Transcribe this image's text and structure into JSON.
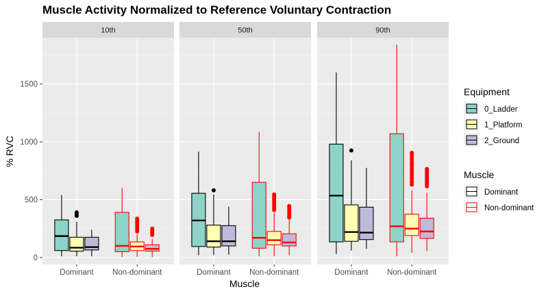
{
  "chart_data": {
    "type": "boxplot",
    "title": "Muscle Activity Normalized to Reference Voluntary Contraction",
    "xlabel": "Muscle",
    "ylabel": "% RVC",
    "ylim": [
      -60,
      1900
    ],
    "yticks": [
      0,
      500,
      1000,
      1500
    ],
    "categories": [
      "Dominant",
      "Non-dominant"
    ],
    "panels": [
      "10th",
      "50th",
      "90th"
    ],
    "legend": {
      "position": "right",
      "equipment_title": "Equipment",
      "equipment": [
        {
          "name": "0_Ladder",
          "fill": "#8dd3c7"
        },
        {
          "name": "1_Platform",
          "fill": "#ffffb3"
        },
        {
          "name": "2_Ground",
          "fill": "#bebada"
        }
      ],
      "muscle_title": "Muscle",
      "muscle": [
        {
          "name": "Dominant",
          "color": "#000000"
        },
        {
          "name": "Non-dominant",
          "color": "#ff0000"
        }
      ]
    },
    "boxes": [
      {
        "panel": "10th",
        "muscle": "Dominant",
        "equipment": "0_Ladder",
        "min": 10,
        "q1": 60,
        "median": 185,
        "q3": 325,
        "max": 540,
        "outliers": []
      },
      {
        "panel": "10th",
        "muscle": "Dominant",
        "equipment": "1_Platform",
        "min": 10,
        "q1": 55,
        "median": 85,
        "q3": 175,
        "max": 310,
        "outliers": [
          360,
          375,
          390
        ]
      },
      {
        "panel": "10th",
        "muscle": "Dominant",
        "equipment": "2_Ground",
        "min": 10,
        "q1": 65,
        "median": 90,
        "q3": 175,
        "max": 240,
        "outliers": []
      },
      {
        "panel": "10th",
        "muscle": "Non-dominant",
        "equipment": "0_Ladder",
        "min": 5,
        "q1": 50,
        "median": 100,
        "q3": 390,
        "max": 600,
        "outliers": []
      },
      {
        "panel": "10th",
        "muscle": "Non-dominant",
        "equipment": "1_Platform",
        "min": 5,
        "q1": 60,
        "median": 95,
        "q3": 135,
        "max": 200,
        "outliers": [
          225,
          245,
          260,
          275,
          290,
          305,
          320,
          335
        ]
      },
      {
        "panel": "10th",
        "muscle": "Non-dominant",
        "equipment": "2_Ground",
        "min": 5,
        "q1": 55,
        "median": 75,
        "q3": 110,
        "max": 160,
        "outliers": [
          195,
          210,
          225,
          240,
          250
        ]
      },
      {
        "panel": "50th",
        "muscle": "Dominant",
        "equipment": "0_Ladder",
        "min": 20,
        "q1": 95,
        "median": 320,
        "q3": 555,
        "max": 915,
        "outliers": []
      },
      {
        "panel": "50th",
        "muscle": "Dominant",
        "equipment": "1_Platform",
        "min": 20,
        "q1": 90,
        "median": 140,
        "q3": 280,
        "max": 545,
        "outliers": [
          580
        ]
      },
      {
        "panel": "50th",
        "muscle": "Dominant",
        "equipment": "2_Ground",
        "min": 25,
        "q1": 100,
        "median": 140,
        "q3": 275,
        "max": 440,
        "outliers": []
      },
      {
        "panel": "50th",
        "muscle": "Non-dominant",
        "equipment": "0_Ladder",
        "min": 10,
        "q1": 80,
        "median": 170,
        "q3": 650,
        "max": 1085,
        "outliers": []
      },
      {
        "panel": "50th",
        "muscle": "Non-dominant",
        "equipment": "1_Platform",
        "min": 10,
        "q1": 110,
        "median": 150,
        "q3": 225,
        "max": 385,
        "outliers": [
          410,
          425,
          440,
          455,
          470,
          485,
          500,
          515,
          530,
          545
        ]
      },
      {
        "panel": "50th",
        "muscle": "Non-dominant",
        "equipment": "2_Ground",
        "min": 20,
        "q1": 100,
        "median": 130,
        "q3": 205,
        "max": 325,
        "outliers": [
          345,
          360,
          375,
          390,
          405,
          420,
          435,
          445
        ]
      },
      {
        "panel": "90th",
        "muscle": "Dominant",
        "equipment": "0_Ladder",
        "min": 30,
        "q1": 135,
        "median": 535,
        "q3": 980,
        "max": 1600,
        "outliers": []
      },
      {
        "panel": "90th",
        "muscle": "Dominant",
        "equipment": "1_Platform",
        "min": 60,
        "q1": 140,
        "median": 220,
        "q3": 455,
        "max": 840,
        "outliers": [
          925
        ]
      },
      {
        "panel": "90th",
        "muscle": "Dominant",
        "equipment": "2_Ground",
        "min": 75,
        "q1": 155,
        "median": 215,
        "q3": 435,
        "max": 775,
        "outliers": []
      },
      {
        "panel": "90th",
        "muscle": "Non-dominant",
        "equipment": "0_Ladder",
        "min": 10,
        "q1": 135,
        "median": 270,
        "q3": 1070,
        "max": 1840,
        "outliers": []
      },
      {
        "panel": "90th",
        "muscle": "Non-dominant",
        "equipment": "1_Platform",
        "min": 40,
        "q1": 190,
        "median": 250,
        "q3": 375,
        "max": 580,
        "outliers": [
          630,
          650,
          670,
          690,
          710,
          730,
          750,
          770,
          790,
          810,
          830,
          850,
          870,
          890,
          905
        ]
      },
      {
        "panel": "90th",
        "muscle": "Non-dominant",
        "equipment": "2_Ground",
        "min": 55,
        "q1": 165,
        "median": 225,
        "q3": 340,
        "max": 560,
        "outliers": [
          615,
          630,
          645,
          660,
          675,
          690,
          705,
          720,
          735,
          750,
          765
        ]
      }
    ]
  }
}
